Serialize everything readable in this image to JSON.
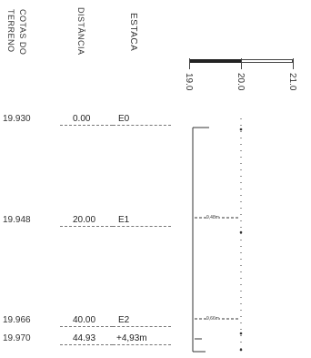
{
  "headers": {
    "terreno": "TERRENO",
    "cotas": "COTAS DO",
    "distancia": "DISTÂNCIA",
    "estaca": "ESTACA"
  },
  "scale": {
    "labels": [
      "19.0",
      "20.0",
      "21.0"
    ]
  },
  "rows": [
    {
      "cota": "19.930",
      "distancia": "0.00",
      "estaca": "E0"
    },
    {
      "cota": "19.948",
      "distancia": "20.00",
      "estaca": "E1"
    },
    {
      "cota": "19.966",
      "distancia": "40.00",
      "estaca": "E2"
    },
    {
      "cota": "19.970",
      "distancia": "44.93",
      "estaca": "+4,93m"
    }
  ],
  "annotations": {
    "e1_offset": "9,48m",
    "e2_offset": "9,66m"
  }
}
